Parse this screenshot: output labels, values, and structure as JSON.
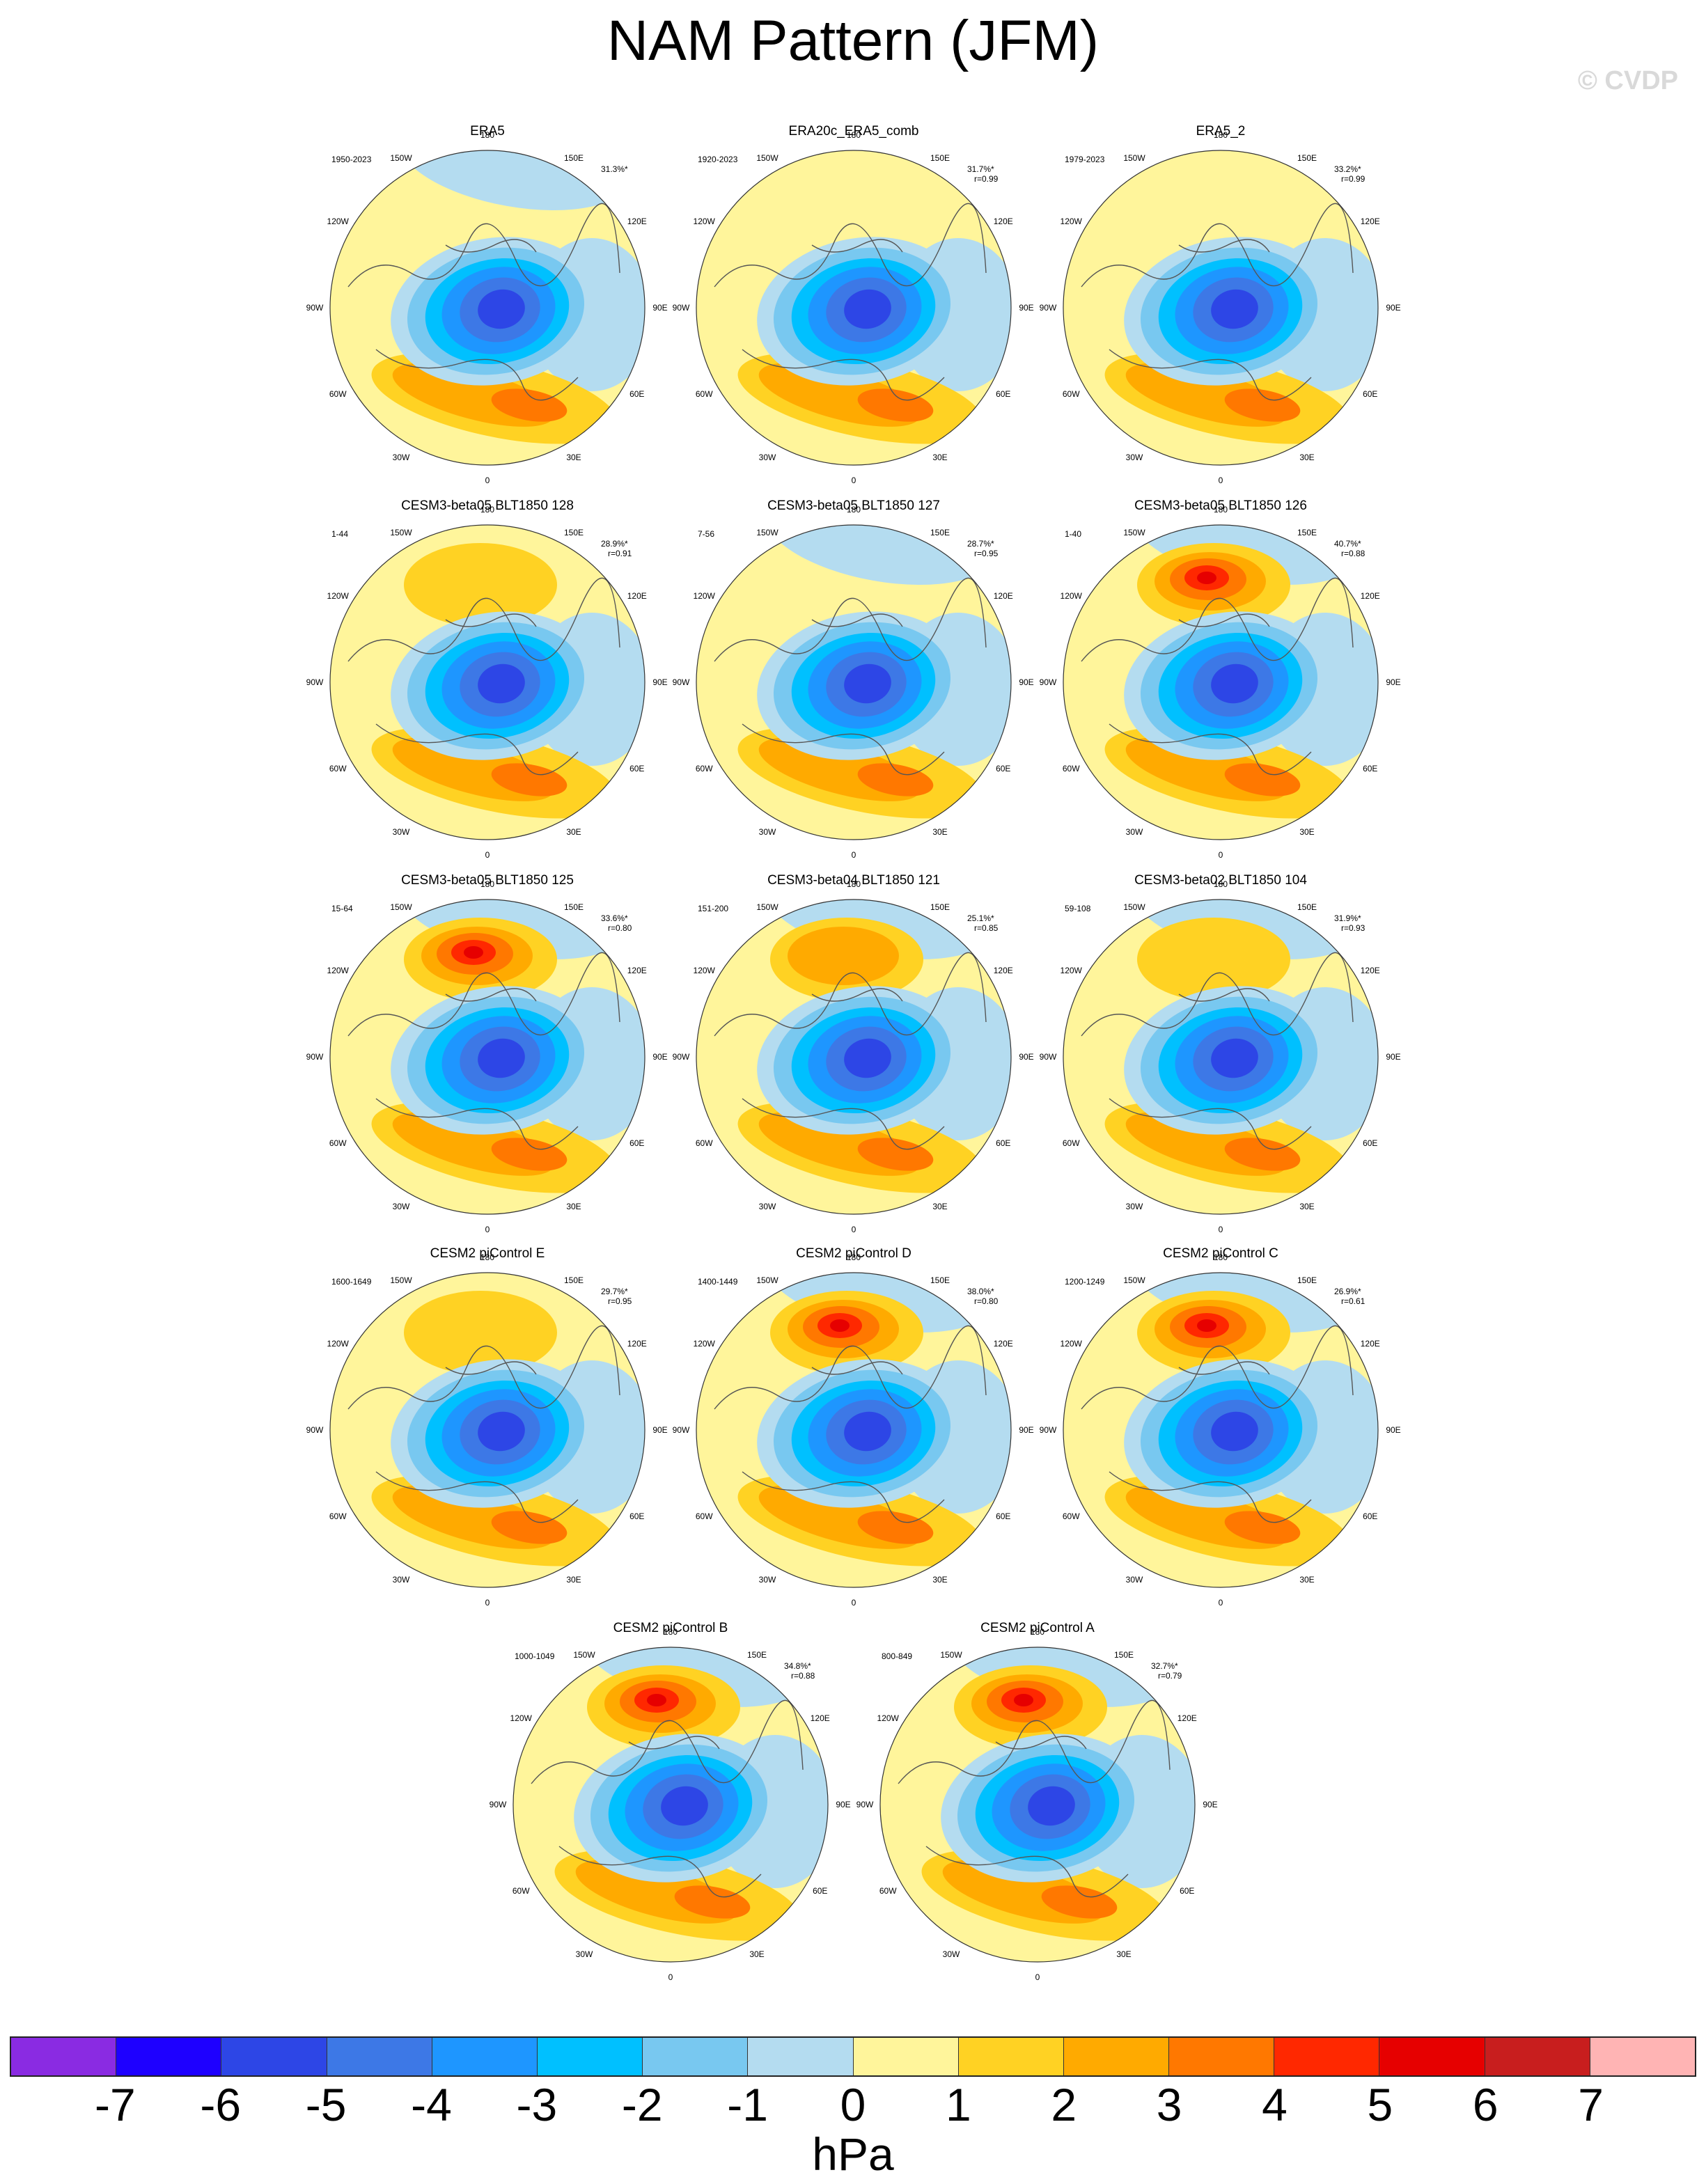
{
  "title": "NAM Pattern (JFM)",
  "watermark": "© CVDP",
  "lon_labels": [
    "180",
    "150E",
    "120E",
    "90E",
    "60E",
    "30E",
    "0",
    "30W",
    "60W",
    "90W",
    "120W",
    "150W"
  ],
  "colorbar": {
    "colors": [
      "#8a2be2",
      "#1e00ff",
      "#2d46e6",
      "#3d78e6",
      "#1e96ff",
      "#00c0ff",
      "#78c8f0",
      "#b4dcf0",
      "#fff59b",
      "#ffd223",
      "#ffaa00",
      "#ff7800",
      "#ff2800",
      "#e60000",
      "#c81e1e",
      "#ffb4b4"
    ],
    "labels": [
      "-7",
      "-6",
      "-5",
      "-4",
      "-3",
      "-2",
      "-1",
      "0",
      "1",
      "2",
      "3",
      "4",
      "5",
      "6",
      "7"
    ],
    "units": "hPa"
  },
  "panels": [
    {
      "title": "ERA5",
      "years": "1950-2023",
      "pct": "31.3%*",
      "r": ""
    },
    {
      "title": "ERA20c_ERA5_comb",
      "years": "1920-2023",
      "pct": "31.7%*",
      "r": "r=0.99"
    },
    {
      "title": "ERA5_2",
      "years": "1979-2023",
      "pct": "33.2%*",
      "r": "r=0.99"
    },
    {
      "title": "CESM3-beta05 BLT1850 128",
      "years": "1-44",
      "pct": "28.9%*",
      "r": "r=0.91"
    },
    {
      "title": "CESM3-beta05 BLT1850 127",
      "years": "7-56",
      "pct": "28.7%*",
      "r": "r=0.95"
    },
    {
      "title": "CESM3-beta05 BLT1850 126",
      "years": "1-40",
      "pct": "40.7%*",
      "r": "r=0.88"
    },
    {
      "title": "CESM3-beta05 BLT1850 125",
      "years": "15-64",
      "pct": "33.6%*",
      "r": "r=0.80"
    },
    {
      "title": "CESM3-beta04 BLT1850 121",
      "years": "151-200",
      "pct": "25.1%*",
      "r": "r=0.85"
    },
    {
      "title": "CESM3-beta02 BLT1850 104",
      "years": "59-108",
      "pct": "31.9%*",
      "r": "r=0.93"
    },
    {
      "title": "CESM2 piControl E",
      "years": "1600-1649",
      "pct": "29.7%*",
      "r": "r=0.95"
    },
    {
      "title": "CESM2 piControl D",
      "years": "1400-1449",
      "pct": "38.0%*",
      "r": "r=0.80"
    },
    {
      "title": "CESM2 piControl C",
      "years": "1200-1249",
      "pct": "26.9%*",
      "r": "r=0.61"
    },
    {
      "title": "CESM2 piControl B",
      "years": "1000-1049",
      "pct": "34.8%*",
      "r": "r=0.88"
    },
    {
      "title": "CESM2 piControl A",
      "years": "800-849",
      "pct": "32.7%*",
      "r": "r=0.79"
    }
  ]
}
